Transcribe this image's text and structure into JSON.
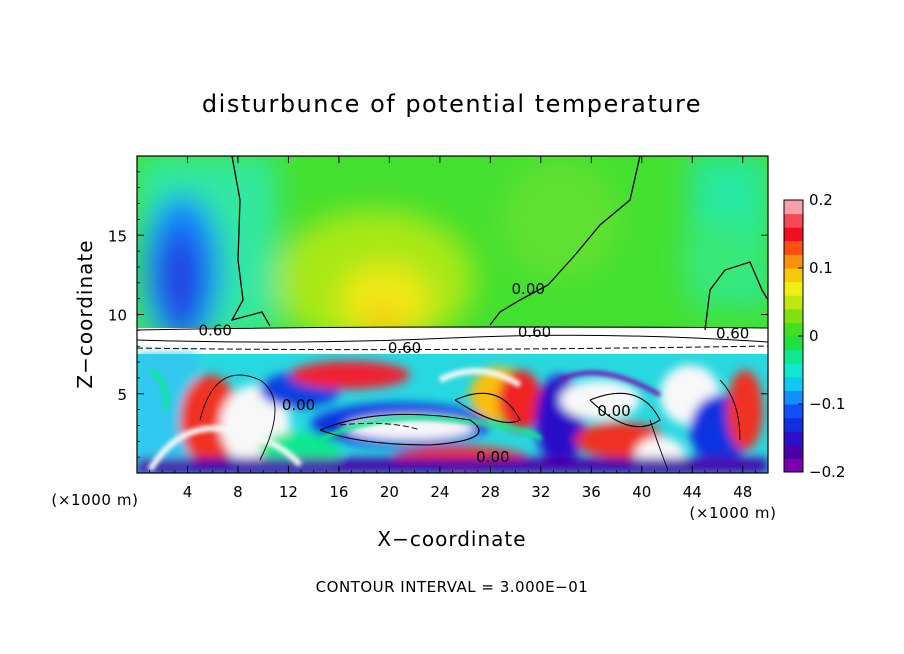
{
  "chart_data": {
    "type": "heatmap",
    "title": "disturbunce of potential temperature",
    "xlabel": "X−coordinate",
    "ylabel": "Z−coordinate",
    "x_unit": "(×1000 m)",
    "y_unit": "(×1000 m)",
    "footer": "CONTOUR INTERVAL = 3.000E−01",
    "xlim": [
      0,
      50
    ],
    "ylim": [
      0,
      20
    ],
    "x_ticks": [
      4,
      8,
      12,
      16,
      20,
      24,
      28,
      32,
      36,
      40,
      44,
      48
    ],
    "y_ticks": [
      5,
      10,
      15
    ],
    "colorbar": {
      "range": [
        -0.2,
        0.2
      ],
      "ticks": [
        -0.2,
        -0.1,
        0,
        0.1,
        0.2
      ],
      "tick_labels": [
        "−0.2",
        "−0.1",
        "0",
        "0.1",
        "0.2"
      ],
      "colors": [
        "#7a00b0",
        "#4b00a8",
        "#2a10c8",
        "#1030e0",
        "#1050ff",
        "#1090ff",
        "#10c8f0",
        "#10e8d0",
        "#10e890",
        "#20e040",
        "#40e020",
        "#80e010",
        "#c0e810",
        "#f0f010",
        "#f8c808",
        "#f89010",
        "#f85010",
        "#f01020",
        "#f84858",
        "#f8a0a8"
      ]
    },
    "contour_labels": [
      {
        "text": "0.00",
        "x": 31,
        "y": 11.6
      },
      {
        "text": "0.60",
        "x": 6.2,
        "y": 9.0
      },
      {
        "text": "0.60",
        "x": 21.2,
        "y": 7.9
      },
      {
        "text": "0.60",
        "x": 31.5,
        "y": 8.9
      },
      {
        "text": "0.60",
        "x": 47.2,
        "y": 8.8
      },
      {
        "text": "0.00",
        "x": 12.8,
        "y": 4.3
      },
      {
        "text": "0.00",
        "x": 37.8,
        "y": 3.9
      },
      {
        "text": "0.00",
        "x": 28.2,
        "y": 1.0
      }
    ]
  }
}
